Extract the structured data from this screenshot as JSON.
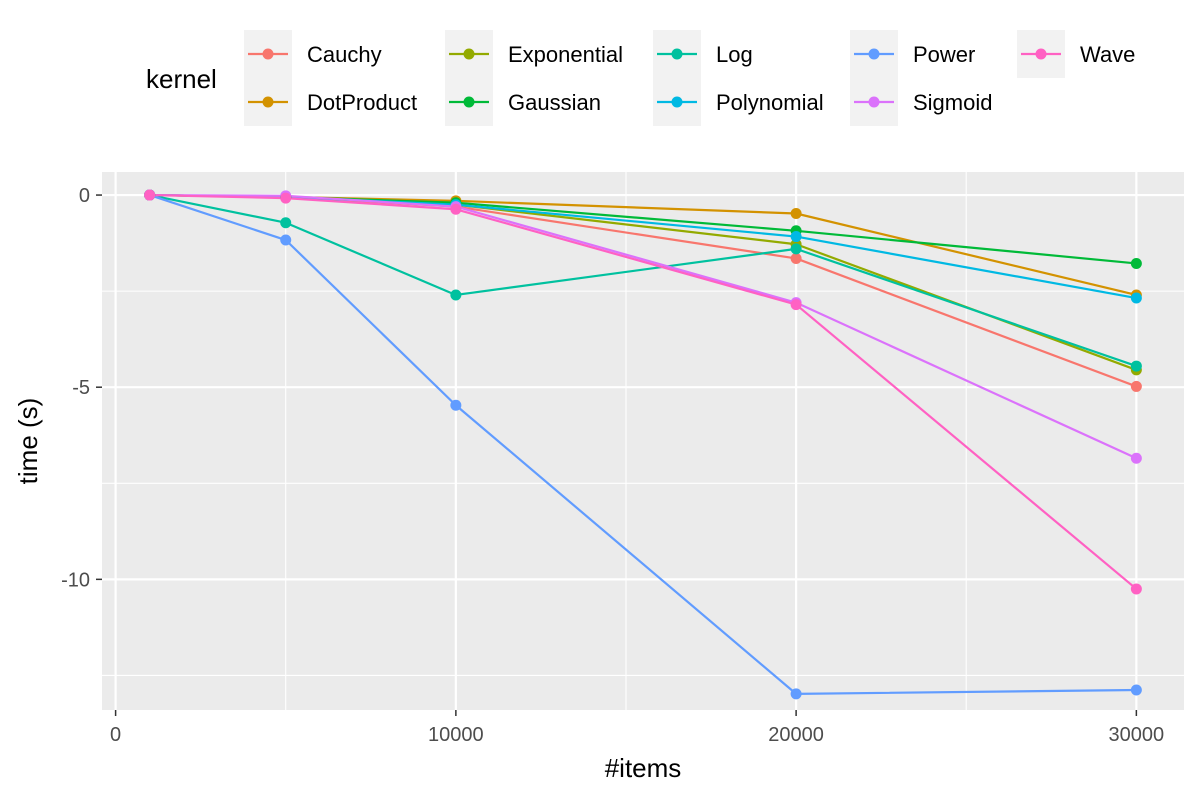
{
  "legend": {
    "title": "kernel"
  },
  "chart_data": {
    "type": "line",
    "title": "",
    "xlabel": "#items",
    "ylabel": "time (s)",
    "xlim": [
      -400,
      31400
    ],
    "ylim": [
      -13.4,
      0.6
    ],
    "x_ticks": [
      0,
      10000,
      20000,
      30000
    ],
    "y_ticks": [
      0,
      -5,
      -10
    ],
    "x_tick_labels": [
      "0",
      "10000",
      "20000",
      "30000"
    ],
    "y_tick_labels": [
      "0",
      "-5",
      "-10"
    ],
    "grid": true,
    "legend_position": "top",
    "x": [
      1000,
      5000,
      10000,
      20000,
      30000
    ],
    "series": [
      {
        "name": "Cauchy",
        "color": "#F8766D",
        "values": [
          0,
          -0.05,
          -0.3,
          -1.65,
          -4.98
        ]
      },
      {
        "name": "DotProduct",
        "color": "#D39200",
        "values": [
          0,
          -0.05,
          -0.15,
          -0.48,
          -2.6
        ]
      },
      {
        "name": "Exponential",
        "color": "#93AA00",
        "values": [
          0,
          -0.05,
          -0.25,
          -1.28,
          -4.55
        ]
      },
      {
        "name": "Gaussian",
        "color": "#00BA38",
        "values": [
          0,
          -0.05,
          -0.2,
          -0.93,
          -1.78
        ]
      },
      {
        "name": "Log",
        "color": "#00C19F",
        "values": [
          0,
          -0.72,
          -2.6,
          -1.4,
          -4.45
        ]
      },
      {
        "name": "Polynomial",
        "color": "#00B9E3",
        "values": [
          0,
          -0.05,
          -0.25,
          -1.08,
          -2.68
        ]
      },
      {
        "name": "Power",
        "color": "#619CFF",
        "values": [
          0,
          -1.17,
          -5.47,
          -12.98,
          -12.88
        ]
      },
      {
        "name": "Sigmoid",
        "color": "#DB72FB",
        "values": [
          0,
          -0.02,
          -0.3,
          -2.8,
          -6.85
        ]
      },
      {
        "name": "Wave",
        "color": "#FF61C3",
        "values": [
          0,
          -0.08,
          -0.37,
          -2.85,
          -10.25
        ]
      }
    ]
  }
}
